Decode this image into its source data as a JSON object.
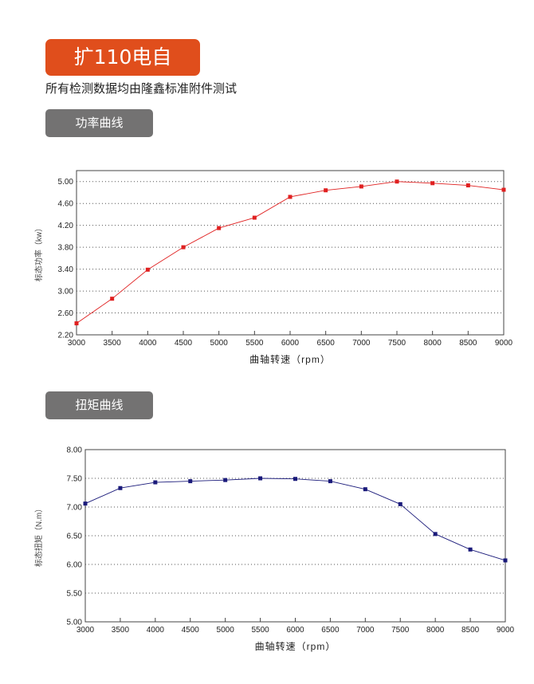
{
  "header": {
    "title": "扩110电自",
    "subtitle": "所有检测数据均由隆鑫标准附件测试"
  },
  "sections": [
    {
      "label": "功率曲线"
    },
    {
      "label": "扭矩曲线"
    }
  ],
  "chart_data": [
    {
      "type": "line",
      "title": "功率曲线",
      "xlabel": "曲轴转速（rpm）",
      "ylabel": "标态功率（kw）",
      "x": [
        3000,
        3500,
        4000,
        4500,
        5000,
        5500,
        6000,
        6500,
        7000,
        7500,
        8000,
        8500,
        9000
      ],
      "series": [
        {
          "name": "power",
          "color": "#e02020",
          "values": [
            2.41,
            2.86,
            3.39,
            3.8,
            4.15,
            4.34,
            4.72,
            4.84,
            4.91,
            5.0,
            4.97,
            4.93,
            4.85
          ]
        }
      ],
      "xlim": [
        3000,
        9000
      ],
      "ylim": [
        2.2,
        5.2
      ],
      "yticks": [
        "2.20",
        "2.60",
        "3.00",
        "3.40",
        "3.80",
        "4.20",
        "4.60",
        "5.00"
      ],
      "xticks": [
        "3000",
        "3500",
        "4000",
        "4500",
        "5000",
        "5500",
        "6000",
        "6500",
        "7000",
        "7500",
        "8000",
        "8500",
        "9000"
      ],
      "grid": true
    },
    {
      "type": "line",
      "title": "扭矩曲线",
      "xlabel": "曲轴转速（rpm）",
      "ylabel": "标态扭矩（N.m）",
      "x": [
        3000,
        3500,
        4000,
        4500,
        5000,
        5500,
        6000,
        6500,
        7000,
        7500,
        8000,
        8500,
        9000
      ],
      "series": [
        {
          "name": "torque",
          "color": "#1a1a7a",
          "values": [
            7.06,
            7.33,
            7.43,
            7.45,
            7.47,
            7.5,
            7.49,
            7.45,
            7.31,
            7.05,
            6.53,
            6.26,
            6.07
          ]
        }
      ],
      "xlim": [
        3000,
        9000
      ],
      "ylim": [
        5.0,
        8.0
      ],
      "yticks": [
        "5.00",
        "5.50",
        "6.00",
        "6.50",
        "7.00",
        "7.50",
        "8.00"
      ],
      "xticks": [
        "3000",
        "3500",
        "4000",
        "4500",
        "5000",
        "5500",
        "6000",
        "6500",
        "7000",
        "7500",
        "8000",
        "8500",
        "9000"
      ],
      "grid": true
    }
  ]
}
